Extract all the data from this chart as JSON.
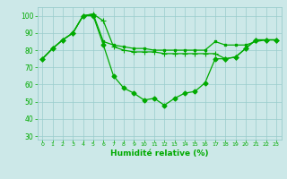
{
  "xlabel": "Humidité relative (%)",
  "xlim": [
    -0.5,
    23.5
  ],
  "ylim": [
    28,
    105
  ],
  "yticks": [
    30,
    40,
    50,
    60,
    70,
    80,
    90,
    100
  ],
  "xticks": [
    0,
    1,
    2,
    3,
    4,
    5,
    6,
    7,
    8,
    9,
    10,
    11,
    12,
    13,
    14,
    15,
    16,
    17,
    18,
    19,
    20,
    21,
    22,
    23
  ],
  "background_color": "#cce8e8",
  "grid_color": "#99cccc",
  "line_color": "#00aa00",
  "line1_x": [
    0,
    1,
    2,
    3,
    4,
    5,
    6,
    7,
    8,
    9,
    10,
    11,
    12,
    13,
    14,
    15,
    16,
    17,
    18,
    19,
    20,
    21,
    22,
    23
  ],
  "line1_y": [
    75,
    81,
    86,
    90,
    100,
    100,
    83,
    65,
    58,
    55,
    51,
    52,
    48,
    52,
    55,
    56,
    61,
    75,
    75,
    76,
    81,
    86,
    86,
    86
  ],
  "line2_x": [
    0,
    1,
    2,
    3,
    4,
    5,
    6,
    7,
    8,
    9,
    10,
    11,
    12,
    13,
    14,
    15,
    16,
    17,
    18,
    19,
    20,
    21,
    22,
    23
  ],
  "line2_y": [
    75,
    81,
    86,
    90,
    100,
    101,
    97,
    82,
    80,
    79,
    79,
    79,
    78,
    78,
    78,
    78,
    78,
    78,
    75,
    76,
    81,
    86,
    86,
    86
  ],
  "line3_x": [
    0,
    1,
    2,
    3,
    4,
    5,
    6,
    7,
    8,
    9,
    10,
    11,
    12,
    13,
    14,
    15,
    16,
    17,
    18,
    19,
    20,
    21,
    22,
    23
  ],
  "line3_y": [
    75,
    81,
    86,
    90,
    100,
    101,
    85,
    83,
    82,
    81,
    81,
    80,
    80,
    80,
    80,
    80,
    80,
    85,
    83,
    83,
    83,
    85,
    86,
    86
  ]
}
